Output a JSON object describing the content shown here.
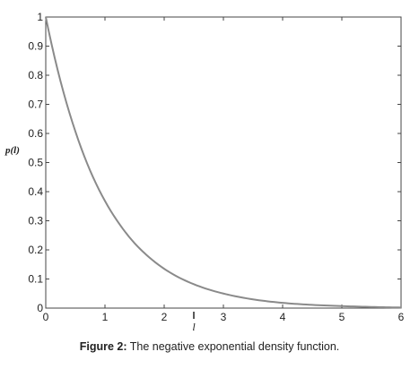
{
  "chart_data": {
    "type": "line",
    "title": "",
    "xlabel": "",
    "ylabel": "p(l)",
    "xlim": [
      0,
      6
    ],
    "ylim": [
      0,
      1
    ],
    "x_ticks": [
      0,
      1,
      2,
      3,
      4,
      5,
      6
    ],
    "x_tick_labels": [
      "0",
      "1",
      "2",
      "3",
      "4",
      "5",
      "6"
    ],
    "y_ticks": [
      0,
      0.1,
      0.2,
      0.3,
      0.4,
      0.5,
      0.6,
      0.7,
      0.8,
      0.9,
      1
    ],
    "y_tick_labels": [
      "0",
      "0.1",
      "0.2",
      "0.3",
      "0.4",
      "0.5",
      "0.6",
      "0.7",
      "0.8",
      "0.9",
      "1"
    ],
    "grid": false,
    "series": [
      {
        "x": [
          0,
          0.25,
          0.5,
          0.75,
          1,
          1.25,
          1.5,
          1.75,
          2,
          2.25,
          2.5,
          2.75,
          3,
          3.5,
          4,
          4.5,
          5,
          5.5,
          6
        ],
        "values": [
          1,
          0.779,
          0.607,
          0.472,
          0.368,
          0.287,
          0.223,
          0.174,
          0.135,
          0.105,
          0.082,
          0.064,
          0.05,
          0.03,
          0.018,
          0.011,
          0.007,
          0.004,
          0.002
        ],
        "color": "#8a8a8a"
      }
    ],
    "annotations": [
      {
        "text": "l",
        "x": 2.5
      }
    ]
  },
  "caption": {
    "label": "Figure 2:",
    "text": " The negative exponential density function."
  }
}
